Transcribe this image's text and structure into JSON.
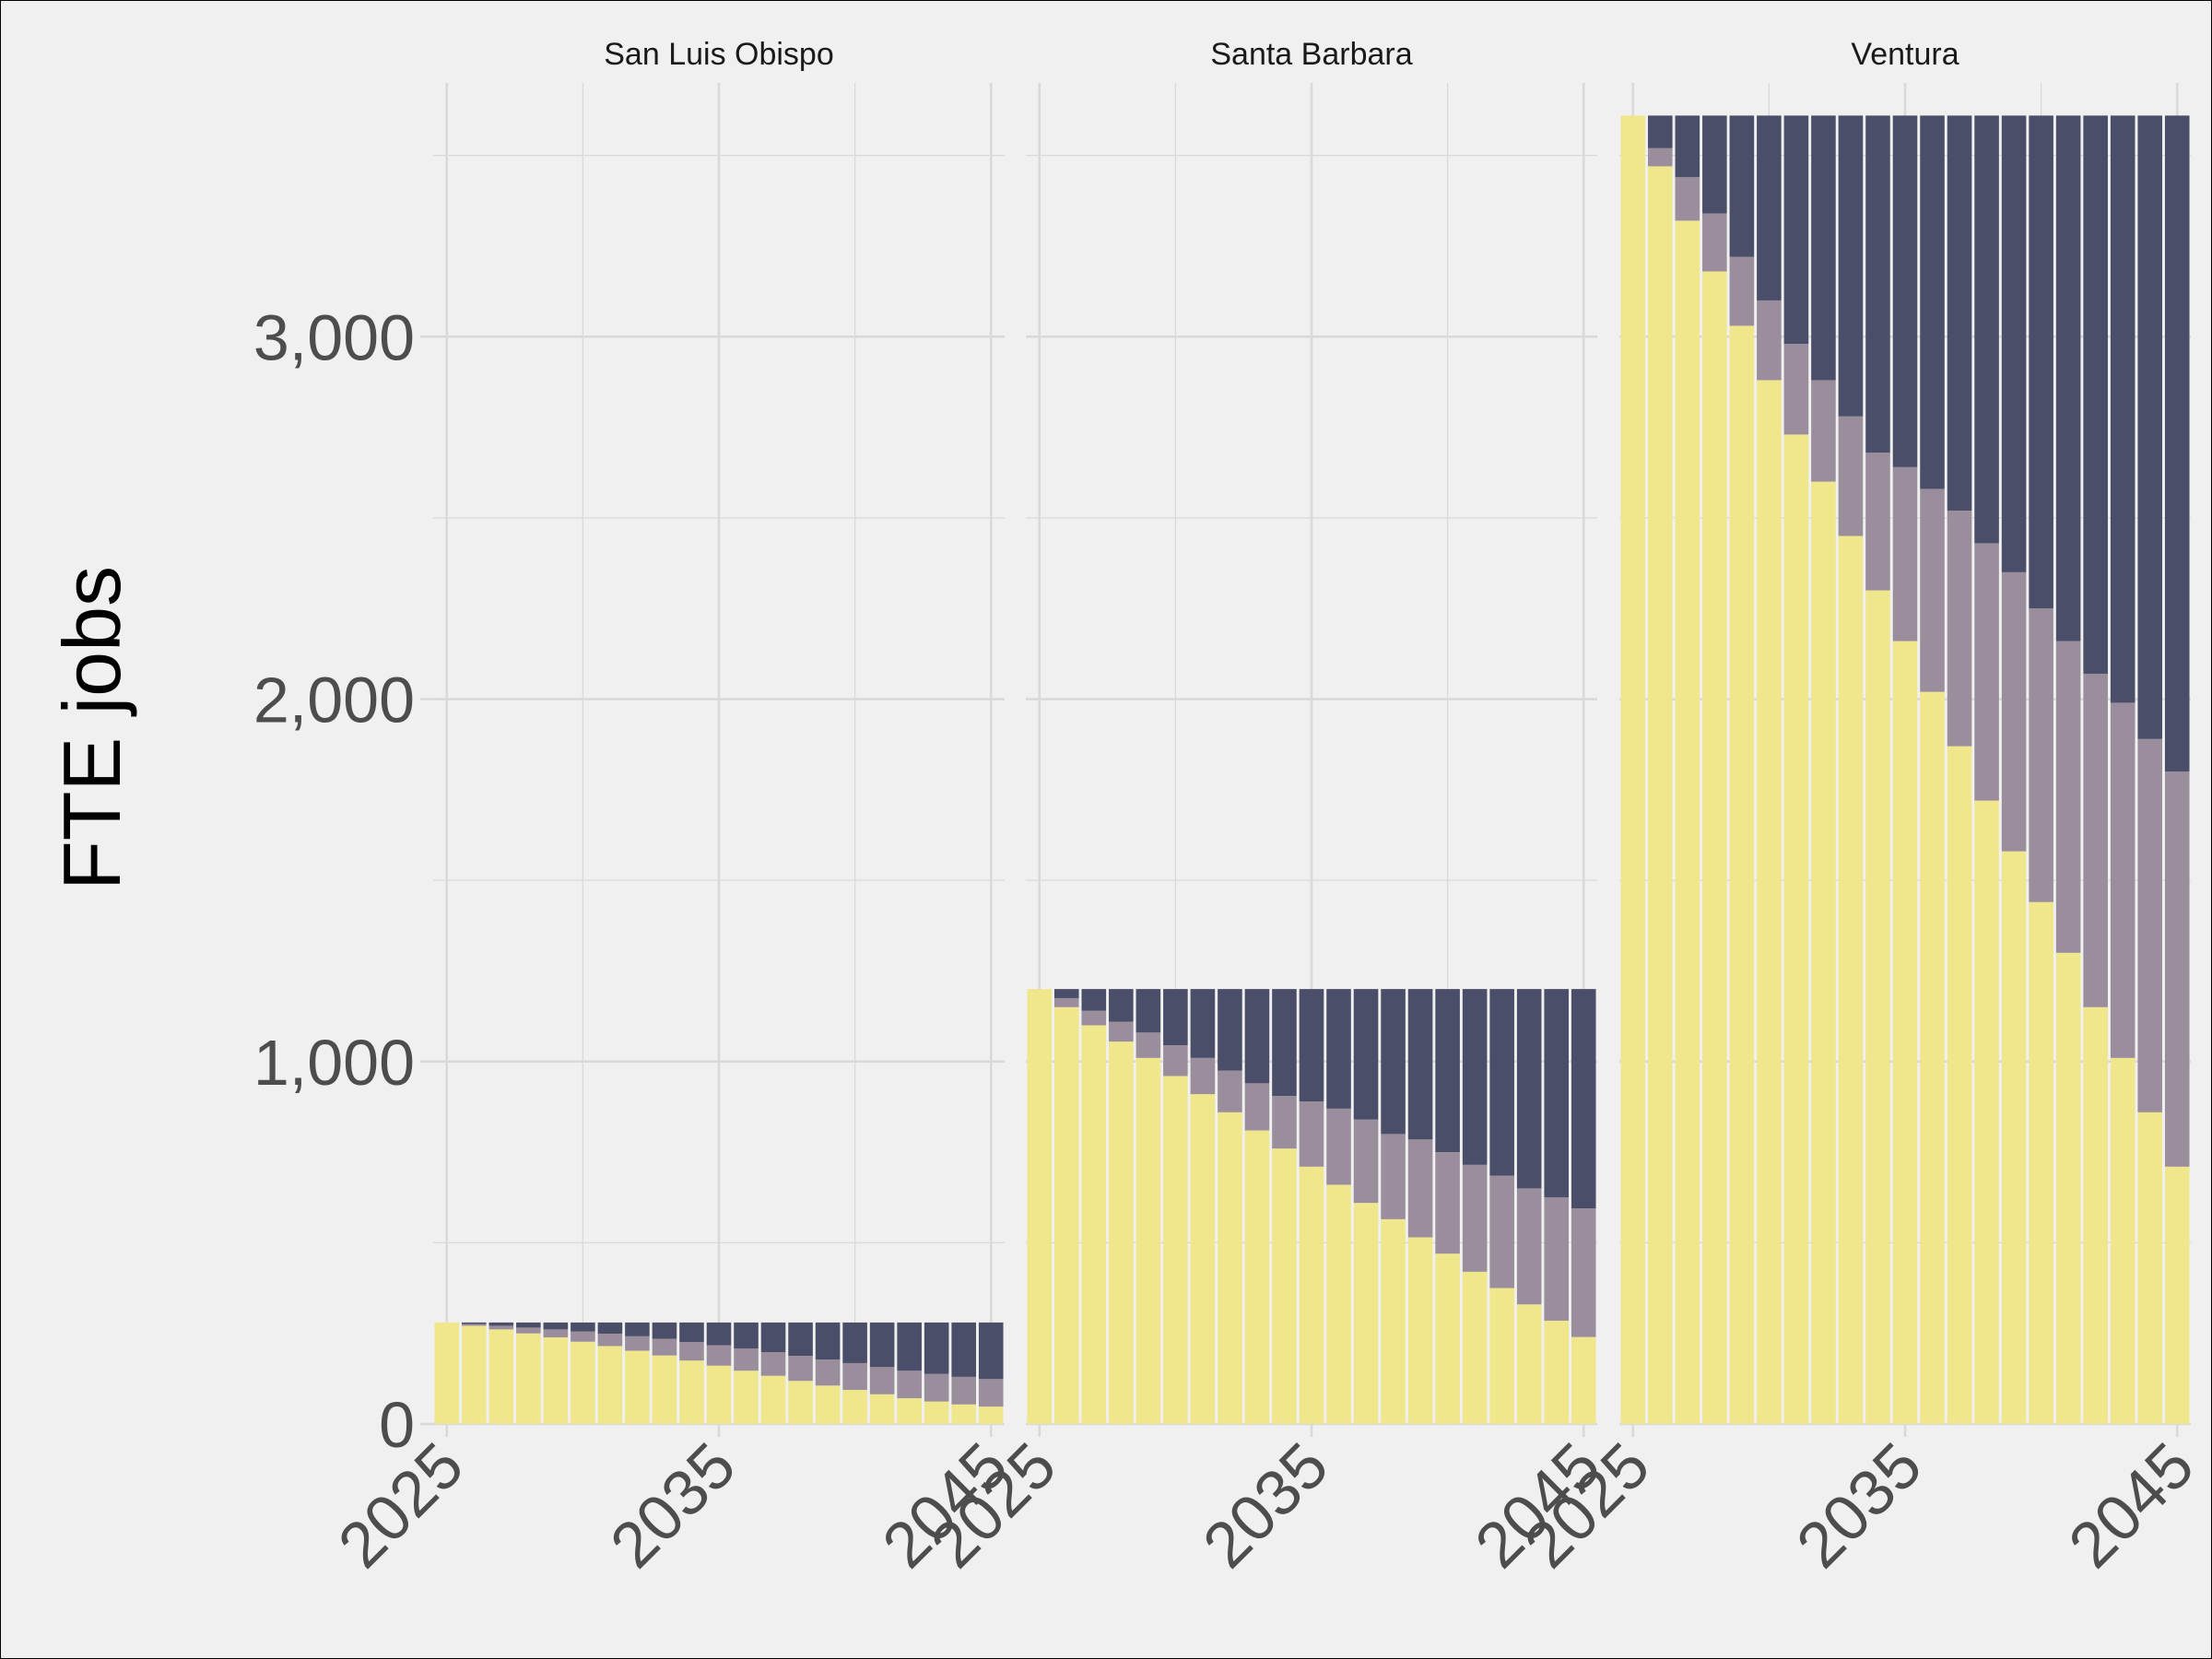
{
  "chart_data": {
    "type": "bar",
    "stacked": true,
    "ylabel": "FTE jobs",
    "xlabel": "",
    "ylim": [
      0,
      3700
    ],
    "xlim": [
      2024.5,
      2045.5
    ],
    "y_ticks": [
      0,
      1000,
      2000,
      3000
    ],
    "y_tick_labels": [
      "0",
      "1,000",
      "2,000",
      "3,000"
    ],
    "x_ticks": [
      2025,
      2035,
      2045
    ],
    "x_tick_labels": [
      "2025",
      "2035",
      "2045"
    ],
    "grid": true,
    "legend": "none",
    "colors": {
      "bottom": "#f0e68c",
      "middle": "#9a8e9c",
      "top": "#4a4e69",
      "background": "#f0f0f0",
      "grid": "#d9d9d9"
    },
    "x": [
      2025,
      2026,
      2027,
      2028,
      2029,
      2030,
      2031,
      2032,
      2033,
      2034,
      2035,
      2036,
      2037,
      2038,
      2039,
      2040,
      2041,
      2042,
      2043,
      2044,
      2045
    ],
    "panels": [
      {
        "label": "San Luis Obispo",
        "series": [
          {
            "values": [
              280,
              271,
              261,
              250,
              239,
              227,
              215,
              202,
              189,
              175,
              161,
              147,
              133,
              119,
              106,
              94,
              82,
              71,
              62,
              54,
              48
            ]
          },
          {
            "values": [
              0,
              5,
              10,
              16,
              22,
              28,
              34,
              40,
              46,
              51,
              56,
              61,
              65,
              69,
              72,
              74,
              75,
              76,
              76,
              76,
              76
            ]
          },
          {
            "values": [
              0,
              4,
              9,
              14,
              19,
              25,
              31,
              38,
              45,
              54,
              63,
              72,
              82,
              92,
              102,
              112,
              123,
              133,
              142,
              150,
              156
            ]
          }
        ]
      },
      {
        "label": "Santa Barbara",
        "series": [
          {
            "values": [
              1200,
              1150,
              1100,
              1055,
              1010,
              960,
              910,
              860,
              810,
              760,
              710,
              660,
              610,
              565,
              515,
              470,
              420,
              375,
              330,
              285,
              240
            ]
          },
          {
            "values": [
              0,
              25,
              40,
              55,
              70,
              85,
              100,
              115,
              130,
              145,
              180,
              210,
              230,
              235,
              270,
              280,
              295,
              310,
              320,
              340,
              355
            ]
          },
          {
            "values": [
              0,
              25,
              60,
              90,
              120,
              155,
              190,
              225,
              260,
              295,
              310,
              330,
              360,
              400,
              415,
              450,
              485,
              515,
              550,
              575,
              605
            ]
          }
        ]
      },
      {
        "label": "Ventura",
        "series": [
          {
            "values": [
              3610,
              3470,
              3320,
              3180,
              3030,
              2880,
              2730,
              2600,
              2450,
              2300,
              2160,
              2020,
              1870,
              1720,
              1580,
              1440,
              1300,
              1150,
              1010,
              860,
              710
            ]
          },
          {
            "values": [
              0,
              50,
              120,
              160,
              190,
              220,
              250,
              280,
              330,
              380,
              480,
              560,
              650,
              710,
              770,
              810,
              860,
              920,
              980,
              1030,
              1090
            ]
          },
          {
            "values": [
              0,
              90,
              170,
              270,
              390,
              510,
              630,
              730,
              830,
              930,
              970,
              1030,
              1090,
              1180,
              1260,
              1360,
              1450,
              1540,
              1620,
              1720,
              1810
            ]
          }
        ]
      }
    ]
  }
}
